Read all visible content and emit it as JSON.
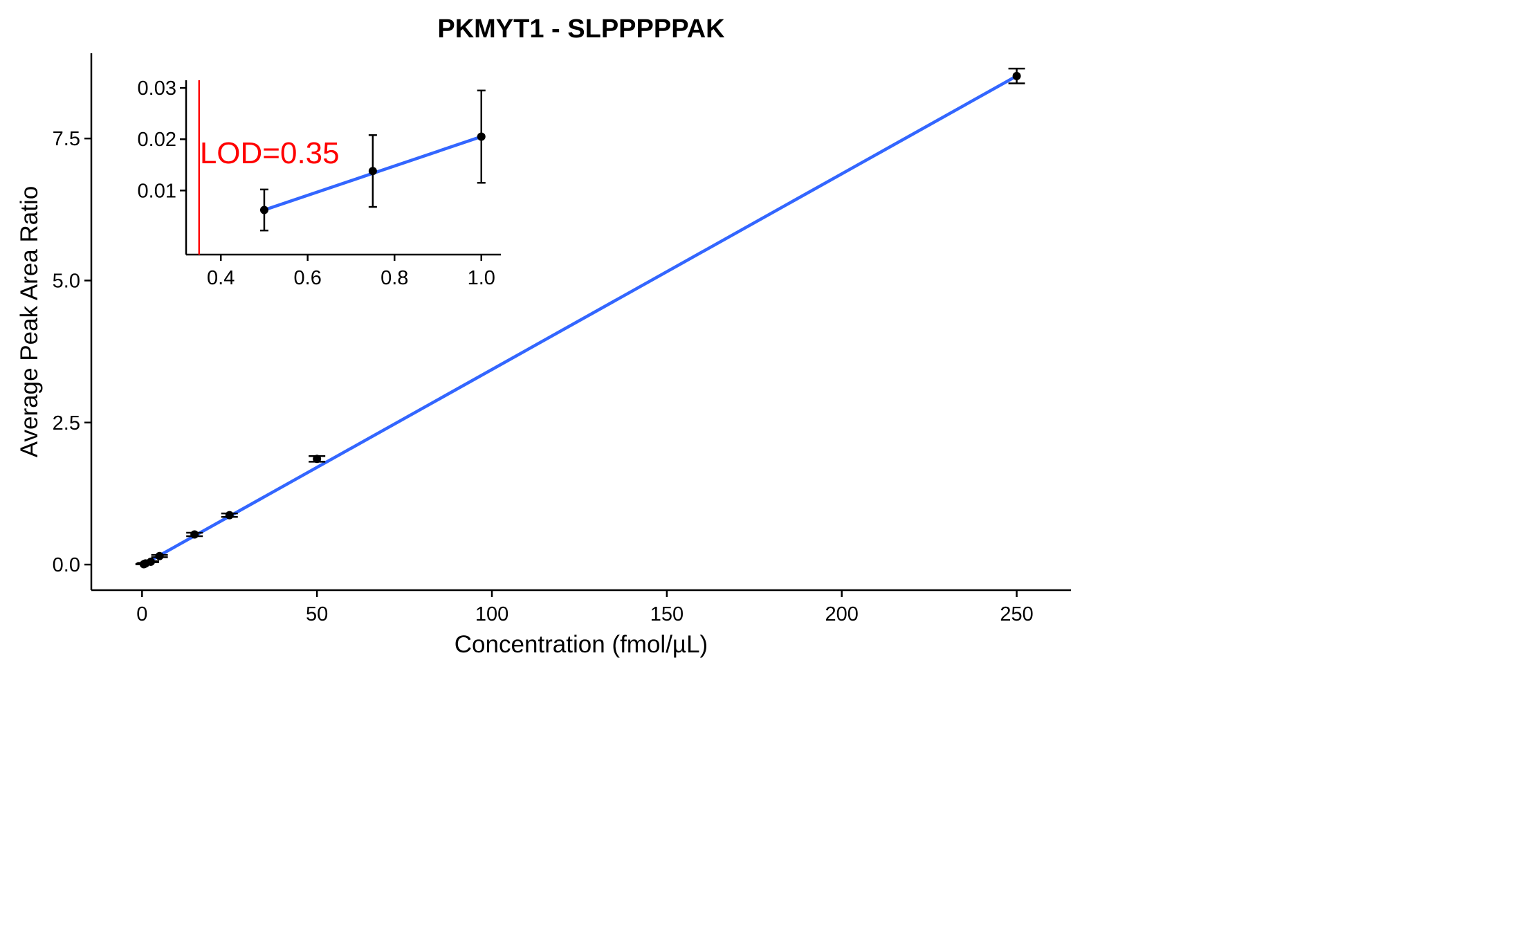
{
  "chart_data": [
    {
      "type": "scatter",
      "title": "PKMYT1 - SLPPPPPAK",
      "xlabel": "Concentration (fmol/µL)",
      "ylabel": "Average Peak Area Ratio",
      "xlim": [
        -14.5,
        265.5
      ],
      "ylim": [
        -0.45,
        9.0
      ],
      "x_ticks": [
        0,
        50,
        100,
        150,
        200,
        250
      ],
      "y_ticks": [
        0.0,
        2.5,
        5.0,
        7.5
      ],
      "x_tick_labels": [
        "0",
        "50",
        "100",
        "150",
        "200",
        "250"
      ],
      "y_tick_labels": [
        "0.0",
        "2.5",
        "5.0",
        "7.5"
      ],
      "grid": false,
      "point_color": "#000000",
      "fit_color": "#3366ff",
      "points": [
        {
          "x": 0.5,
          "y": 0.006,
          "err": 0.003
        },
        {
          "x": 0.75,
          "y": 0.014,
          "err": 0.005
        },
        {
          "x": 1,
          "y": 0.021,
          "err": 0.009
        },
        {
          "x": 2.5,
          "y": 0.05,
          "err": 0.01
        },
        {
          "x": 5,
          "y": 0.15,
          "err": 0.02
        },
        {
          "x": 15,
          "y": 0.53,
          "err": 0.03
        },
        {
          "x": 25,
          "y": 0.87,
          "err": 0.03
        },
        {
          "x": 50,
          "y": 1.86,
          "err": 0.05
        },
        {
          "x": 250,
          "y": 8.6,
          "err": 0.13
        }
      ],
      "fit_line": {
        "x": [
          0.5,
          250
        ],
        "y": [
          0.0065,
          8.6
        ]
      }
    },
    {
      "type": "scatter",
      "xlim": [
        0.32,
        1.045
      ],
      "ylim": [
        -0.0025,
        0.0315
      ],
      "x_ticks": [
        0.4,
        0.6,
        0.8,
        1.0
      ],
      "y_ticks": [
        0.01,
        0.02,
        0.03
      ],
      "x_tick_labels": [
        "0.4",
        "0.6",
        "0.8",
        "1.0"
      ],
      "y_tick_labels": [
        "0.01",
        "0.02",
        "0.03"
      ],
      "grid": false,
      "points": [
        {
          "x": 0.5,
          "y": 0.0062,
          "low": 0.0022,
          "high": 0.0102
        },
        {
          "x": 0.75,
          "y": 0.0138,
          "low": 0.0068,
          "high": 0.0208
        },
        {
          "x": 1.0,
          "y": 0.0205,
          "low": 0.0115,
          "high": 0.0295
        }
      ],
      "fit_line": {
        "x": [
          0.5,
          1.0
        ],
        "y": [
          0.0062,
          0.0205
        ]
      },
      "lod": {
        "x": 0.35,
        "label": "LOD=0.35",
        "color": "#ff0000"
      }
    }
  ]
}
